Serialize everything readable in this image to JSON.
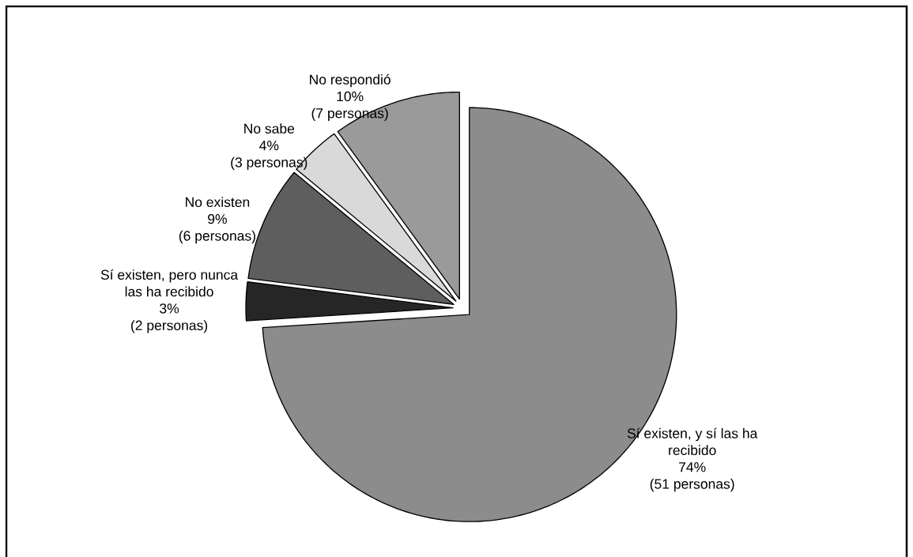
{
  "chart_data": {
    "type": "pie",
    "categories": [
      "Sí existen, y sí las ha recibido",
      "Sí existen, pero nunca las ha recibido",
      "No existen",
      "No sabe",
      "No respondió"
    ],
    "values": [
      74,
      3,
      9,
      4,
      10
    ],
    "value_labels": [
      "74%",
      "3%",
      "9%",
      "4%",
      "10%"
    ],
    "colors": [
      "#8c8c8c",
      "#262626",
      "#5e5e5e",
      "#d9d9d9",
      "#9a9a9a"
    ],
    "annotations": [
      "(51 personas)",
      "(2 personas)",
      "(6 personas)",
      "(3 personas)",
      "(7 personas)"
    ]
  }
}
